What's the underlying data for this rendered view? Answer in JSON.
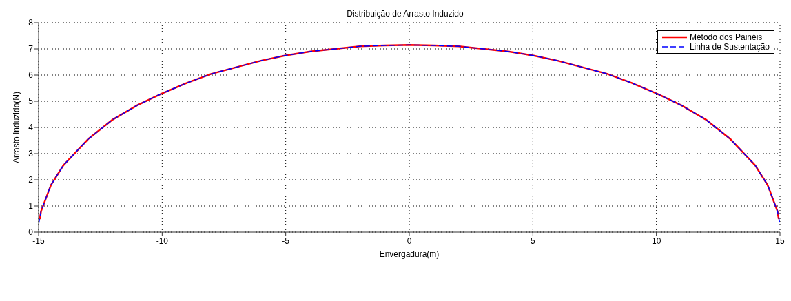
{
  "chart_data": {
    "type": "line",
    "title": "Distribuição de Arrasto Induzido",
    "xlabel": "Envergadura(m)",
    "ylabel": "Arrasto Induzido(N)",
    "xlim": [
      -15,
      15
    ],
    "xticks": [
      -15,
      -10,
      -5,
      0,
      5,
      10,
      15
    ],
    "ylim": [
      0,
      8
    ],
    "yticks": [
      0,
      1,
      2,
      3,
      4,
      5,
      6,
      7,
      8
    ],
    "grid": true,
    "legend": "top right",
    "marker": "none",
    "series": [
      {
        "name": "Método dos Painéis",
        "color": "#ff0000",
        "line_style": "solid",
        "x": [
          -14.95,
          -14.9,
          -14.5,
          -14,
          -13,
          -12,
          -11,
          -10,
          -9,
          -8,
          -7,
          -6,
          -5,
          -4,
          -3,
          -2,
          -1,
          0,
          1,
          2,
          3,
          4,
          5,
          6,
          7,
          8,
          9,
          10,
          11,
          12,
          13,
          14,
          14.5,
          14.9,
          14.95
        ],
        "values": [
          0.5,
          0.8,
          1.8,
          2.55,
          3.55,
          4.3,
          4.85,
          5.3,
          5.7,
          6.05,
          6.3,
          6.55,
          6.75,
          6.9,
          7.0,
          7.1,
          7.13,
          7.15,
          7.13,
          7.1,
          7.0,
          6.9,
          6.75,
          6.55,
          6.3,
          6.05,
          5.7,
          5.3,
          4.85,
          4.3,
          3.55,
          2.55,
          1.8,
          0.8,
          0.5
        ]
      },
      {
        "name": "Linha de Sustentação",
        "color": "#0000ff",
        "line_style": "dashed",
        "x": [
          -15,
          -14.9,
          -14.5,
          -14,
          -13,
          -12,
          -11,
          -10,
          -9,
          -8,
          -7,
          -6,
          -5,
          -4,
          -3,
          -2,
          -1,
          0,
          1,
          2,
          3,
          4,
          5,
          6,
          7,
          8,
          9,
          10,
          11,
          12,
          13,
          14,
          14.5,
          14.9,
          15
        ],
        "values": [
          0.3,
          0.8,
          1.8,
          2.55,
          3.55,
          4.3,
          4.85,
          5.3,
          5.7,
          6.05,
          6.3,
          6.55,
          6.75,
          6.9,
          7.0,
          7.1,
          7.13,
          7.15,
          7.13,
          7.1,
          7.0,
          6.9,
          6.75,
          6.55,
          6.3,
          6.05,
          5.7,
          5.3,
          4.85,
          4.3,
          3.55,
          2.55,
          1.8,
          0.8,
          0.3
        ]
      }
    ]
  }
}
